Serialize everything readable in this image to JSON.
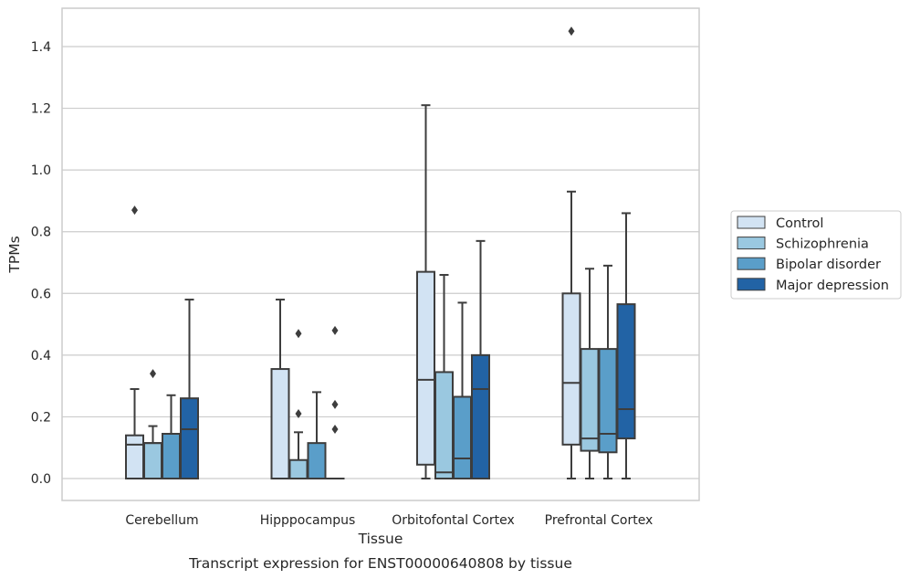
{
  "chart_data": {
    "type": "box",
    "xlabel": "Tissue",
    "ylabel": "TPMs",
    "caption": "Transcript expression for ENST00000640808 by tissue",
    "categories": [
      "Cerebellum",
      "Hipppocampus",
      "Orbitofontal Cortex",
      "Prefrontal Cortex"
    ],
    "ylim": [
      -0.07,
      1.53
    ],
    "yticks": [
      0.0,
      0.2,
      0.4,
      0.6,
      0.8,
      1.0,
      1.2,
      1.4
    ],
    "ytick_labels": [
      "0.0",
      "0.2",
      "0.4",
      "0.6",
      "0.8",
      "1.0",
      "1.2",
      "1.4"
    ],
    "grid": "horizontal",
    "legend_position": "right",
    "series": [
      {
        "name": "Control",
        "color": "#d2e3f3",
        "boxes": [
          {
            "whislo": 0.0,
            "q1": 0.0,
            "med": 0.11,
            "q3": 0.14,
            "whishi": 0.29,
            "fliers": [
              0.87
            ]
          },
          {
            "whislo": 0.0,
            "q1": 0.0,
            "med": 0.0,
            "q3": 0.355,
            "whishi": 0.58,
            "fliers": []
          },
          {
            "whislo": 0.0,
            "q1": 0.045,
            "med": 0.32,
            "q3": 0.67,
            "whishi": 1.21,
            "fliers": []
          },
          {
            "whislo": 0.0,
            "q1": 0.11,
            "med": 0.31,
            "q3": 0.6,
            "whishi": 0.93,
            "fliers": [
              1.45
            ]
          }
        ]
      },
      {
        "name": "Schizophrenia",
        "color": "#9ac8e0",
        "boxes": [
          {
            "whislo": 0.0,
            "q1": 0.0,
            "med": 0.115,
            "q3": 0.115,
            "whishi": 0.17,
            "fliers": [
              0.34
            ]
          },
          {
            "whislo": 0.0,
            "q1": 0.0,
            "med": 0.0,
            "q3": 0.06,
            "whishi": 0.15,
            "fliers": [
              0.21,
              0.47
            ]
          },
          {
            "whislo": 0.0,
            "q1": 0.0,
            "med": 0.02,
            "q3": 0.345,
            "whishi": 0.66,
            "fliers": []
          },
          {
            "whislo": 0.0,
            "q1": 0.09,
            "med": 0.13,
            "q3": 0.42,
            "whishi": 0.68,
            "fliers": []
          }
        ]
      },
      {
        "name": "Bipolar disorder",
        "color": "#5a9ec9",
        "boxes": [
          {
            "whislo": 0.0,
            "q1": 0.0,
            "med": 0.145,
            "q3": 0.145,
            "whishi": 0.27,
            "fliers": []
          },
          {
            "whislo": 0.0,
            "q1": 0.0,
            "med": 0.0,
            "q3": 0.115,
            "whishi": 0.28,
            "fliers": []
          },
          {
            "whislo": 0.0,
            "q1": 0.0,
            "med": 0.065,
            "q3": 0.265,
            "whishi": 0.57,
            "fliers": []
          },
          {
            "whislo": 0.0,
            "q1": 0.085,
            "med": 0.145,
            "q3": 0.42,
            "whishi": 0.69,
            "fliers": []
          }
        ]
      },
      {
        "name": "Major depression",
        "color": "#2263a5",
        "boxes": [
          {
            "whislo": 0.0,
            "q1": 0.0,
            "med": 0.16,
            "q3": 0.26,
            "whishi": 0.58,
            "fliers": []
          },
          {
            "whislo": 0.0,
            "q1": 0.0,
            "med": 0.0,
            "q3": 0.0,
            "whishi": 0.0,
            "fliers": [
              0.16,
              0.24,
              0.48
            ]
          },
          {
            "whislo": 0.0,
            "q1": 0.0,
            "med": 0.29,
            "q3": 0.4,
            "whishi": 0.77,
            "fliers": []
          },
          {
            "whislo": 0.0,
            "q1": 0.13,
            "med": 0.225,
            "q3": 0.565,
            "whishi": 0.86,
            "fliers": []
          }
        ]
      }
    ]
  }
}
